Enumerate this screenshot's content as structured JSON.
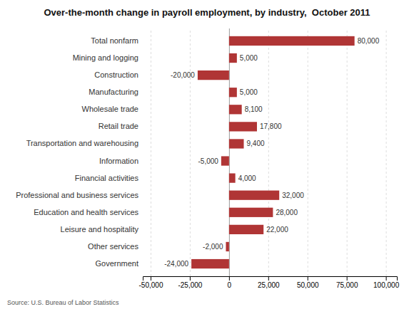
{
  "chart_data": {
    "type": "bar",
    "orientation": "horizontal",
    "title": "Over-the-month change in payroll employment, by industry,  October 2011",
    "annotations": [
      "Source: U.S. Bureau of Labor Statistics"
    ],
    "categories": [
      "Government",
      "Other services",
      "Leisure and hospitality",
      "Education and health services",
      "Professional and business services",
      "Financial activities",
      "Information",
      "Transportation and warehousing",
      "Retail trade",
      "Wholesale trade",
      "Manufacturing",
      "Construction",
      "Mining and logging",
      "Total nonfarm"
    ],
    "values": [
      -24000,
      -2000,
      22000,
      28000,
      32000,
      4000,
      -5000,
      9400,
      17800,
      8100,
      5000,
      -20000,
      5000,
      80000
    ],
    "value_labels": [
      "-24,000",
      "-2,000",
      "22,000",
      "28,000",
      "32,000",
      "4,000",
      "-5,000",
      "9,400",
      "17,800",
      "8,100",
      "5,000",
      "-20,000",
      "5,000",
      "80,000"
    ],
    "data_labels": true,
    "color": "#b03535",
    "xlim": [
      -55000,
      107000
    ],
    "xticks": [
      {
        "value": -50000,
        "label": "-50,000"
      },
      {
        "value": -25000,
        "label": "-25,000"
      },
      0,
      {
        "value": 25000,
        "label": "25,000"
      },
      {
        "value": 50000,
        "label": "50,000"
      },
      {
        "value": 75000,
        "label": "75,000"
      },
      {
        "value": 100000,
        "label": "100,000"
      }
    ],
    "grid": true
  }
}
